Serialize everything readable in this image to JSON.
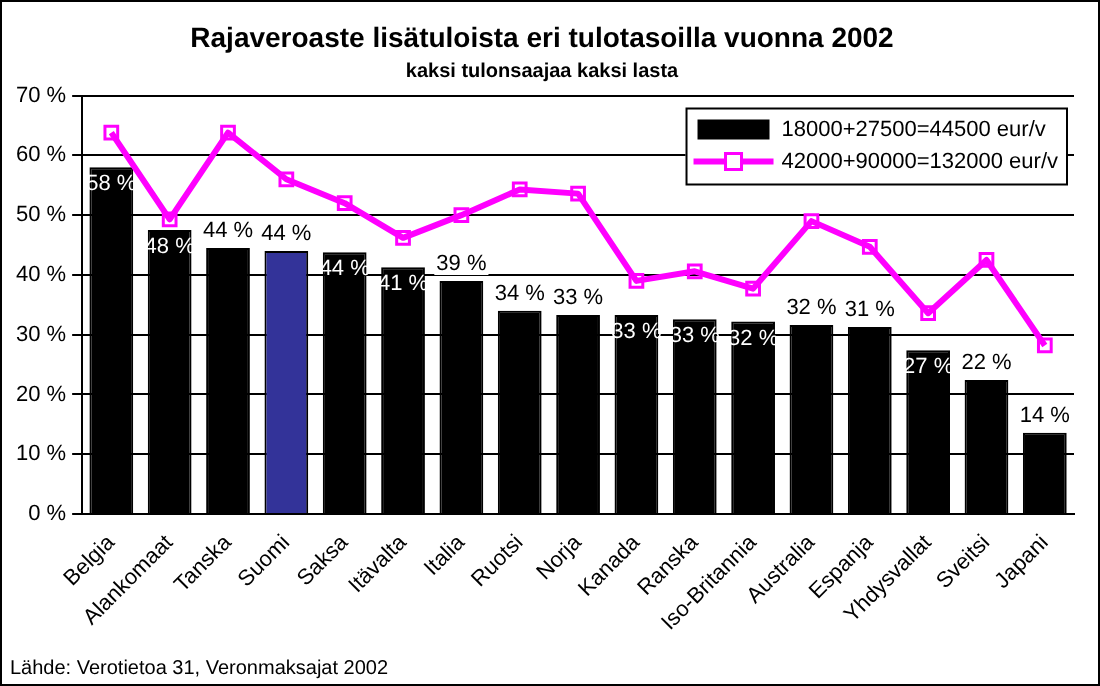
{
  "chart_data": {
    "type": "bar",
    "title": "Rajaveroaste lisätuloista eri tulotasoilla vuonna 2002",
    "subtitle": "kaksi tulonsaajaa kaksi lasta",
    "categories": [
      "Belgia",
      "Alankomaat",
      "Tanska",
      "Suomi",
      "Saksa",
      "Itävalta",
      "Italia",
      "Ruotsi",
      "Norja",
      "Kanada",
      "Ranska",
      "Iso-Britannia",
      "Australia",
      "Espanja",
      "Yhdysvallat",
      "Sveitsi",
      "Japani"
    ],
    "series": [
      {
        "name": "18000+27500=44500 eur/v",
        "color": "#000000",
        "colors": [
          "#000000",
          "#000000",
          "#000000",
          "#333399",
          "#000000",
          "#000000",
          "#000000",
          "#000000",
          "#000000",
          "#000000",
          "#000000",
          "#000000",
          "#000000",
          "#000000",
          "#000000",
          "#000000",
          "#000000"
        ],
        "values": [
          58,
          47.5,
          44.5,
          44,
          43.8,
          41.3,
          39,
          34,
          33.3,
          33.3,
          32.6,
          32.2,
          31.6,
          31.3,
          27.4,
          22.4,
          13.6
        ],
        "value_labels": [
          "58 %",
          "48 %",
          "44 %",
          "44 %",
          "44 %",
          "41 %",
          "39 %",
          "34 %",
          "33 %",
          "33 %",
          "33 %",
          "32 %",
          "32 %",
          "31 %",
          "27 %",
          "22 %",
          "14 %"
        ]
      },
      {
        "name": "42000+90000=132000 eur/v",
        "type": "line",
        "color": "#ff00ff",
        "marker": "square",
        "values": [
          63.8,
          49.3,
          63.8,
          56,
          52,
          46.2,
          50,
          54.3,
          53.6,
          39,
          40.6,
          37.7,
          49,
          44.7,
          33.6,
          42.5,
          28.2
        ]
      }
    ],
    "ylim": [
      0,
      70
    ],
    "yticks": [
      {
        "value": 0,
        "label": "0 %"
      },
      {
        "value": 10,
        "label": "10 %"
      },
      {
        "value": 20,
        "label": "20 %"
      },
      {
        "value": 30,
        "label": "30 %"
      },
      {
        "value": 40,
        "label": "40 %"
      },
      {
        "value": 50,
        "label": "50 %"
      },
      {
        "value": 60,
        "label": "60 %"
      },
      {
        "value": 70,
        "label": "70 %"
      }
    ],
    "grid": "y",
    "legend": "top right",
    "annotations": [
      "Lähde: Verotietoa 31, Veronmaksajat 2002"
    ]
  }
}
